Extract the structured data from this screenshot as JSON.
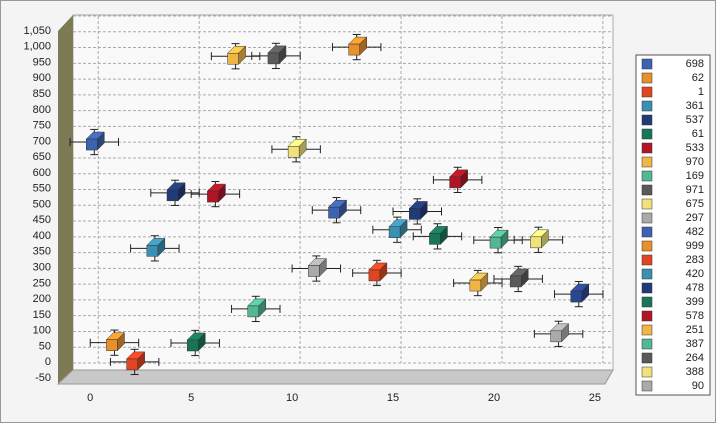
{
  "chart_data": {
    "type": "scatter",
    "xlim": [
      -1.25,
      25.5
    ],
    "xticks": [
      0,
      5,
      10,
      15,
      20,
      25
    ],
    "ylim": [
      -50,
      1050
    ],
    "yticks": [
      -50,
      0,
      50,
      100,
      150,
      200,
      250,
      300,
      350,
      400,
      450,
      500,
      550,
      600,
      650,
      700,
      750,
      800,
      850,
      900,
      950,
      {
        "value": 1000,
        "label": "1,000"
      },
      {
        "value": 1050,
        "label": "1,050"
      }
    ],
    "grid": true,
    "legend": "right",
    "x_error": 1.2,
    "y_error": 40,
    "series": [
      {
        "name": "698",
        "color": "#3d62b0",
        "x": [
          0.2
        ],
        "y": [
          698
        ]
      },
      {
        "name": "62",
        "color": "#e8902a",
        "x": [
          1.2
        ],
        "y": [
          62
        ]
      },
      {
        "name": "1",
        "color": "#e04420",
        "x": [
          2.2
        ],
        "y": [
          1
        ]
      },
      {
        "name": "361",
        "color": "#3a90b0",
        "x": [
          3.2
        ],
        "y": [
          361
        ]
      },
      {
        "name": "537",
        "color": "#213a78",
        "x": [
          4.2
        ],
        "y": [
          537
        ]
      },
      {
        "name": "61",
        "color": "#177558",
        "x": [
          5.2
        ],
        "y": [
          61
        ]
      },
      {
        "name": "533",
        "color": "#b01525",
        "x": [
          6.2
        ],
        "y": [
          533
        ]
      },
      {
        "name": "970",
        "color": "#f0b545",
        "x": [
          7.2
        ],
        "y": [
          970
        ]
      },
      {
        "name": "169",
        "color": "#52b892",
        "x": [
          8.2
        ],
        "y": [
          169
        ]
      },
      {
        "name": "971",
        "color": "#5a5a5a",
        "x": [
          9.2
        ],
        "y": [
          971
        ]
      },
      {
        "name": "675",
        "color": "#f0e27a",
        "x": [
          10.2
        ],
        "y": [
          675
        ]
      },
      {
        "name": "297",
        "color": "#aaaaaa",
        "x": [
          11.2
        ],
        "y": [
          297
        ]
      },
      {
        "name": "482",
        "color": "#3d62b0",
        "x": [
          12.2
        ],
        "y": [
          482
        ]
      },
      {
        "name": "999",
        "color": "#e8902a",
        "x": [
          13.2
        ],
        "y": [
          999
        ]
      },
      {
        "name": "283",
        "color": "#e04420",
        "x": [
          14.2
        ],
        "y": [
          283
        ]
      },
      {
        "name": "420",
        "color": "#3a90b0",
        "x": [
          15.2
        ],
        "y": [
          420
        ]
      },
      {
        "name": "478",
        "color": "#213a78",
        "x": [
          16.2
        ],
        "y": [
          478
        ]
      },
      {
        "name": "399",
        "color": "#177558",
        "x": [
          17.2
        ],
        "y": [
          399
        ]
      },
      {
        "name": "578",
        "color": "#b01525",
        "x": [
          18.2
        ],
        "y": [
          578
        ]
      },
      {
        "name": "251",
        "color": "#f0b545",
        "x": [
          19.2
        ],
        "y": [
          251
        ]
      },
      {
        "name": "387",
        "color": "#52b892",
        "x": [
          20.2
        ],
        "y": [
          387
        ]
      },
      {
        "name": "264",
        "color": "#5a5a5a",
        "x": [
          21.2
        ],
        "y": [
          264
        ]
      },
      {
        "name": "388",
        "color": "#f0e27a",
        "x": [
          22.2
        ],
        "y": [
          388
        ]
      },
      {
        "name": "90",
        "color": "#aaaaaa",
        "x": [
          23.2
        ],
        "y": [
          90
        ]
      },
      {
        "name": null,
        "color": "#2a4690",
        "x": [
          24.2
        ],
        "y": [
          216
        ]
      }
    ]
  }
}
